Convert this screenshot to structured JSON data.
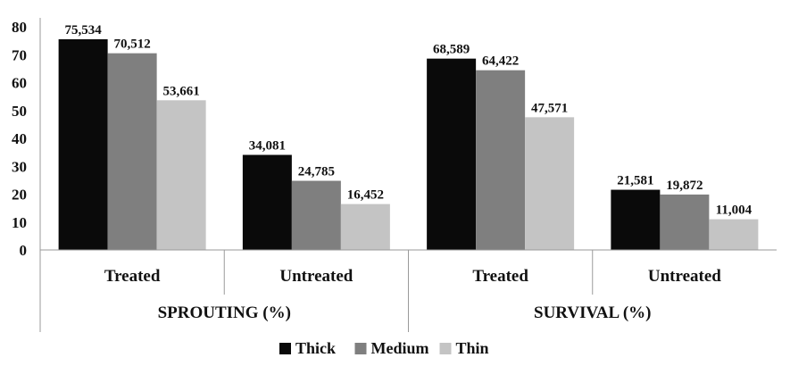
{
  "chart_data": {
    "type": "bar",
    "groups": [
      "SPROUTING (%)",
      "SURVIVAL (%)"
    ],
    "categories": [
      "Treated",
      "Untreated",
      "Treated",
      "Untreated"
    ],
    "series": [
      {
        "name": "Thick",
        "color": "#0a0a0a",
        "values": [
          75.534,
          34.081,
          68.589,
          21.581
        ],
        "labels": [
          "75,534",
          "34,081",
          "68,589",
          "21,581"
        ]
      },
      {
        "name": "Medium",
        "color": "#7f7f7f",
        "values": [
          70.512,
          24.785,
          64.422,
          19.872
        ],
        "labels": [
          "70,512",
          "24,785",
          "64,422",
          "19,872"
        ]
      },
      {
        "name": "Thin",
        "color": "#c4c4c4",
        "values": [
          53.661,
          16.452,
          47.571,
          11.004
        ],
        "labels": [
          "53,661",
          "16,452",
          "47,571",
          "11,004"
        ]
      }
    ],
    "yticks": [
      "0",
      "10",
      "20",
      "30",
      "40",
      "50",
      "60",
      "70",
      "80"
    ],
    "ylim": [
      0,
      80
    ],
    "grid": false,
    "legend": "bottom"
  }
}
